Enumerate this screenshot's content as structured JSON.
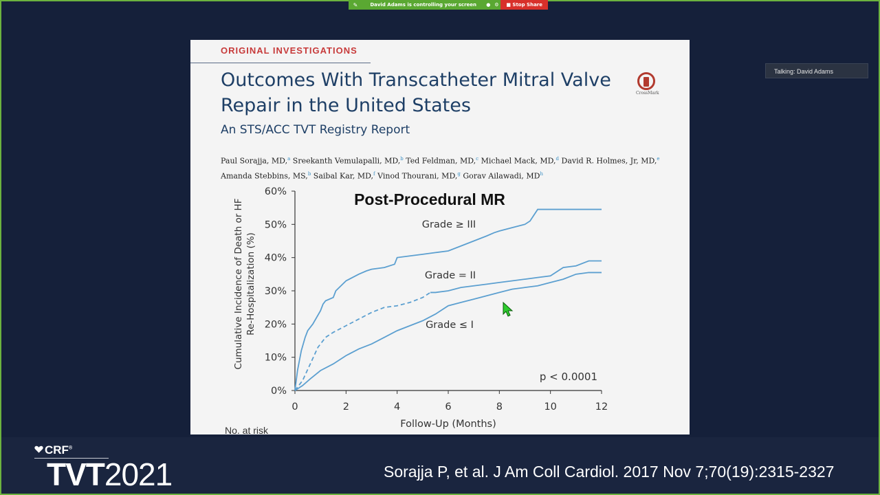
{
  "share_bar": {
    "message": "David Adams is controlling your screen",
    "stop_label": "Stop Share"
  },
  "talking": "Talking: David Adams",
  "slide": {
    "kicker": "ORIGINAL INVESTIGATIONS",
    "title_line1": "Outcomes With Transcatheter Mitral Valve",
    "title_line2": "Repair in the United States",
    "subtitle": "An STS/ACC TVT Registry Report",
    "crossmark_label": "CrossMark",
    "authors_line1": [
      {
        "name": "Paul Sorajja, MD,",
        "sup": "a"
      },
      {
        "name": " Sreekanth Vemulapalli, MD,",
        "sup": "b"
      },
      {
        "name": " Ted Feldman, MD,",
        "sup": "c"
      },
      {
        "name": " Michael Mack, MD,",
        "sup": "d"
      },
      {
        "name": " David R. Holmes, Jr, MD,",
        "sup": "e"
      }
    ],
    "authors_line2": [
      {
        "name": "Amanda Stebbins, MS,",
        "sup": "b"
      },
      {
        "name": " Saibal Kar, MD,",
        "sup": "f"
      },
      {
        "name": " Vinod Thourani, MD,",
        "sup": "g"
      },
      {
        "name": " Gorav Ailawadi, MD",
        "sup": "h"
      }
    ],
    "at_risk_label": "No. at risk"
  },
  "chart_data": {
    "type": "line",
    "title": "Post-Procedural MR",
    "xlabel": "Follow-Up (Months)",
    "ylabel_line1": "Cumulative Incidence of Death or HF",
    "ylabel_line2": "Re-Hospitalization (%)",
    "xlim": [
      0,
      12
    ],
    "ylim": [
      0,
      60
    ],
    "x_ticks": [
      0,
      2,
      4,
      6,
      8,
      10,
      12
    ],
    "y_ticks": [
      "0%",
      "10%",
      "20%",
      "30%",
      "40%",
      "50%",
      "60%"
    ],
    "annotation": "p < 0.0001",
    "line_color": "#5b9fd0",
    "series": [
      {
        "name": "Grade ≥ III",
        "style": "solid",
        "points": [
          [
            0,
            0
          ],
          [
            0.1,
            6
          ],
          [
            0.25,
            12
          ],
          [
            0.4,
            16
          ],
          [
            0.5,
            18
          ],
          [
            0.7,
            20
          ],
          [
            1.0,
            24
          ],
          [
            1.1,
            26
          ],
          [
            1.2,
            27
          ],
          [
            1.5,
            28
          ],
          [
            1.6,
            30
          ],
          [
            1.8,
            31.5
          ],
          [
            2.0,
            33
          ],
          [
            2.5,
            35
          ],
          [
            2.8,
            36
          ],
          [
            3.0,
            36.5
          ],
          [
            3.5,
            37
          ],
          [
            3.9,
            38
          ],
          [
            4.0,
            40
          ],
          [
            4.5,
            40.5
          ],
          [
            5.0,
            41
          ],
          [
            5.5,
            41.5
          ],
          [
            6.0,
            42
          ],
          [
            6.5,
            43.5
          ],
          [
            7.0,
            45
          ],
          [
            7.5,
            46.5
          ],
          [
            7.8,
            47.5
          ],
          [
            8.0,
            48
          ],
          [
            8.5,
            49
          ],
          [
            9.0,
            50
          ],
          [
            9.2,
            51
          ],
          [
            9.5,
            54.5
          ],
          [
            10,
            54.5
          ],
          [
            12,
            54.5
          ]
        ]
      },
      {
        "name": "Grade = II",
        "style": "solid-after-dashed",
        "points": [
          [
            0,
            0
          ],
          [
            0.3,
            3
          ],
          [
            0.6,
            8
          ],
          [
            0.9,
            13
          ],
          [
            1.2,
            16
          ],
          [
            1.5,
            17.5
          ],
          [
            2.0,
            19.5
          ],
          [
            2.5,
            21.5
          ],
          [
            3.0,
            23.5
          ],
          [
            3.5,
            25
          ],
          [
            4.0,
            25.5
          ],
          [
            4.5,
            26.5
          ],
          [
            5.0,
            28
          ],
          [
            5.3,
            29.5
          ],
          [
            5.5,
            29.5
          ],
          [
            6.0,
            30
          ],
          [
            6.5,
            31
          ],
          [
            7.0,
            31.5
          ],
          [
            7.5,
            32
          ],
          [
            8.0,
            32.5
          ],
          [
            8.5,
            33
          ],
          [
            9.0,
            33.5
          ],
          [
            9.5,
            34
          ],
          [
            10,
            34.5
          ],
          [
            10.5,
            37
          ],
          [
            11,
            37.5
          ],
          [
            11.5,
            39
          ],
          [
            12,
            39
          ]
        ]
      },
      {
        "name": "Grade ≤ I",
        "style": "solid",
        "points": [
          [
            0,
            0
          ],
          [
            0.3,
            1.5
          ],
          [
            0.6,
            3.5
          ],
          [
            1.0,
            6
          ],
          [
            1.5,
            8
          ],
          [
            2.0,
            10.5
          ],
          [
            2.5,
            12.5
          ],
          [
            3.0,
            14
          ],
          [
            3.5,
            16
          ],
          [
            4.0,
            18
          ],
          [
            4.5,
            19.5
          ],
          [
            5.0,
            21
          ],
          [
            5.5,
            23
          ],
          [
            6.0,
            25.5
          ],
          [
            6.5,
            26.5
          ],
          [
            7.0,
            27.5
          ],
          [
            7.5,
            28.5
          ],
          [
            8.0,
            29.5
          ],
          [
            8.5,
            30.5
          ],
          [
            9.0,
            31
          ],
          [
            9.5,
            31.5
          ],
          [
            10,
            32.5
          ],
          [
            10.5,
            33.5
          ],
          [
            11,
            35
          ],
          [
            11.5,
            35.5
          ],
          [
            12,
            35.5
          ]
        ]
      }
    ]
  },
  "footer": {
    "brand": "CRF",
    "brand_mark": "®",
    "event_bold": "TVT",
    "event_year": "2021",
    "citation": "Sorajja P, et al. J Am Coll Cardiol. 2017 Nov 7;70(19):2315-2327"
  }
}
